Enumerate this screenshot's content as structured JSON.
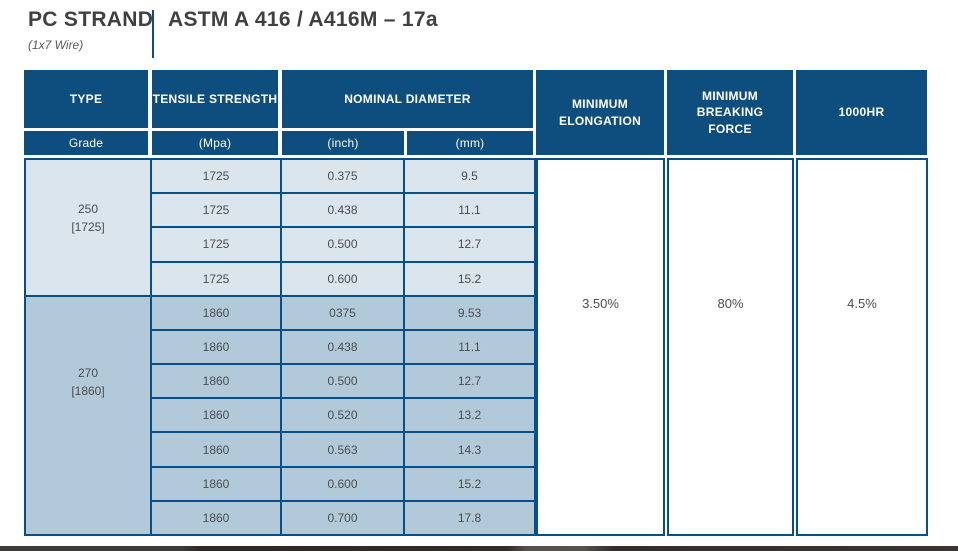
{
  "header": {
    "title": "PC STRAND",
    "subtitle": "(1x7 Wire)",
    "standard": "ASTM A 416 / A416M – 17a"
  },
  "colors": {
    "header_bg": "#0e4e7e",
    "border": "#05508a",
    "row_light": "#dbe5ee",
    "row_medium": "#b2c9da",
    "title_ink": "#3f4043",
    "cell_ink": "#4c4d4f"
  },
  "table": {
    "headers": {
      "type": "TYPE",
      "tensile_strength": "TENSILE STRENGTH",
      "nominal_diameter": "NOMINAL DIAMETER",
      "min_elongation": "MINIMUM ELONGATION",
      "min_breaking_force": "MINIMUM BREAKING FORCE",
      "hr1000": "1000HR",
      "grade": "Grade",
      "mpa": "(Mpa)",
      "inch": "(inch)",
      "mm": "(mm)"
    },
    "groups": [
      {
        "grade": "250",
        "grade_bracket": "[1725]",
        "rows": [
          [
            "1725",
            "0.375",
            "9.5"
          ],
          [
            "1725",
            "0.438",
            "11.1"
          ],
          [
            "1725",
            "0.500",
            "12.7"
          ],
          [
            "1725",
            "0.600",
            "15.2"
          ]
        ]
      },
      {
        "grade": "270",
        "grade_bracket": "[1860]",
        "rows": [
          [
            "1860",
            "0375",
            "9.53"
          ],
          [
            "1860",
            "0.438",
            "11.1"
          ],
          [
            "1860",
            "0.500",
            "12.7"
          ],
          [
            "1860",
            "0.520",
            "13.2"
          ],
          [
            "1860",
            "0.563",
            "14.3"
          ],
          [
            "1860",
            "0.600",
            "15.2"
          ],
          [
            "1860",
            "0.700",
            "17.8"
          ]
        ]
      }
    ],
    "merged_values": {
      "min_elongation": "3.50%",
      "min_breaking_force": "80%",
      "hr1000": "4.5%"
    }
  }
}
